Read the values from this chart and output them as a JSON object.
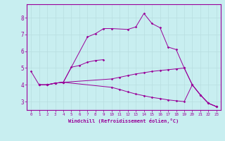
{
  "xlabel": "Windchill (Refroidissement éolien,°C)",
  "background_color": "#c8eef0",
  "line_color": "#990099",
  "grid_color": "#b8dde0",
  "xlim": [
    -0.5,
    23.5
  ],
  "ylim": [
    2.5,
    8.8
  ],
  "xticks": [
    0,
    1,
    2,
    3,
    4,
    5,
    6,
    7,
    8,
    9,
    10,
    11,
    12,
    13,
    14,
    15,
    16,
    17,
    18,
    19,
    20,
    21,
    22,
    23
  ],
  "yticks": [
    3,
    4,
    5,
    6,
    7,
    8
  ],
  "line_a_x": [
    0,
    1,
    2,
    3,
    4,
    5,
    6,
    7,
    8,
    9
  ],
  "line_a_y": [
    4.8,
    4.0,
    4.0,
    4.1,
    4.15,
    5.05,
    5.15,
    5.35,
    5.45,
    5.5
  ],
  "line_b_x": [
    1,
    2,
    3,
    4,
    7,
    8,
    9,
    10,
    12,
    13,
    14,
    15,
    16,
    17,
    18,
    19,
    20,
    21,
    22,
    23
  ],
  "line_b_y": [
    4.0,
    4.0,
    4.1,
    4.15,
    6.85,
    7.05,
    7.35,
    7.35,
    7.3,
    7.45,
    8.25,
    7.65,
    7.4,
    6.25,
    6.1,
    5.0,
    4.0,
    3.4,
    2.9,
    2.7
  ],
  "line_c_x": [
    1,
    2,
    3,
    4,
    10,
    11,
    12,
    13,
    14,
    15,
    16,
    17,
    18,
    19,
    20,
    21,
    22,
    23
  ],
  "line_c_y": [
    4.0,
    4.0,
    4.1,
    4.15,
    4.35,
    4.45,
    4.55,
    4.65,
    4.72,
    4.8,
    4.85,
    4.9,
    4.95,
    5.0,
    4.0,
    3.4,
    2.9,
    2.7
  ],
  "line_d_x": [
    1,
    2,
    3,
    4,
    10,
    11,
    12,
    13,
    14,
    15,
    16,
    17,
    18,
    19,
    20,
    21,
    22,
    23
  ],
  "line_d_y": [
    4.0,
    4.0,
    4.1,
    4.15,
    3.85,
    3.72,
    3.58,
    3.45,
    3.35,
    3.25,
    3.18,
    3.1,
    3.05,
    3.0,
    4.0,
    3.4,
    2.9,
    2.7
  ]
}
